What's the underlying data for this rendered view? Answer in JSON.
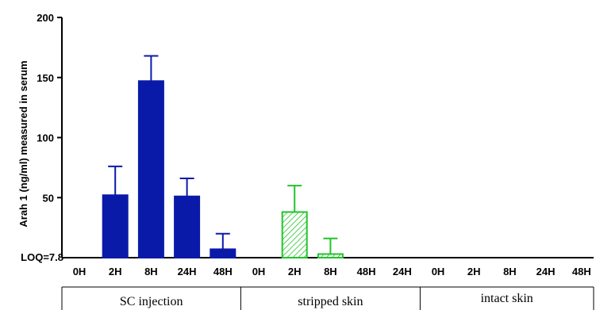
{
  "chart_data": {
    "type": "bar",
    "ylabel": "Arah 1 (ng/ml) measured in serum",
    "ylim": [
      0,
      200
    ],
    "yticks": [
      "200",
      "150",
      "100",
      "50"
    ],
    "loq_label": "LOQ=7.8",
    "loq_value": 7.8,
    "categories": [
      "0H",
      "2H",
      "8H",
      "24H",
      "48H",
      "0H",
      "2H",
      "8H",
      "48H",
      "24H",
      "0H",
      "2H",
      "8H",
      "24H",
      "48H"
    ],
    "values": [
      0,
      52,
      147,
      51,
      7,
      0,
      38,
      3,
      0,
      0,
      0,
      0,
      0,
      0,
      0
    ],
    "errors": [
      0,
      24,
      21,
      15,
      13,
      0,
      22,
      13,
      0,
      0,
      0,
      0,
      0,
      0,
      0
    ],
    "groups": [
      {
        "name": "SC injection",
        "start": 0,
        "end": 4,
        "color": "#0a1aa8",
        "fill": "solid"
      },
      {
        "name": "stripped skin",
        "start": 5,
        "end": 9,
        "color": "#22c42a",
        "fill": "hatched"
      },
      {
        "name": "intact skin",
        "start": 10,
        "end": 14,
        "color": "#000000",
        "fill": "none"
      }
    ],
    "grid": false
  }
}
